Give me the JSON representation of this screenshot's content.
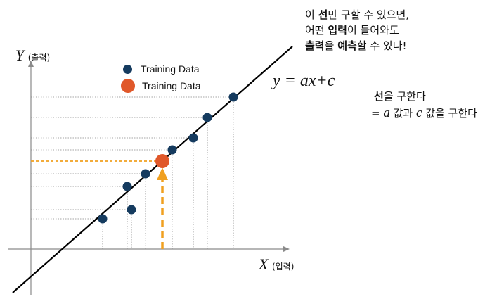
{
  "axes": {
    "y_label": "Y",
    "y_sub": "(출력)",
    "x_label": "X",
    "x_sub": "(입력)"
  },
  "legend": {
    "items": [
      {
        "label": "Training Data",
        "marker": "small-navy-dot"
      },
      {
        "label": "Training Data",
        "marker": "large-orange-dot"
      }
    ]
  },
  "equation": "y = ax+c",
  "top_note": {
    "line1_pre": "이 ",
    "line1_bold": "선",
    "line1_post": "만 구할 수 있으면,",
    "line2_pre": "어떤 ",
    "line2_bold": "입력",
    "line2_post": "이 들어와도",
    "line3_bold1": "출력",
    "line3_mid": "을 ",
    "line3_bold2": "예측",
    "line3_post": "할 수 있다!"
  },
  "side_note": {
    "line1_bold": "선",
    "line1_post": "을 구한다",
    "line2_pre": "= ",
    "line2_a": "a",
    "line2_mid": " 값과 ",
    "line2_c": "c",
    "line2_post": " 값을 구한다"
  },
  "colors": {
    "training_point": "#153b5f",
    "predicted_point": "#e0582a",
    "prediction_arrow": "#f0a020",
    "regression_line": "#000000",
    "guide_line": "#888888"
  }
}
